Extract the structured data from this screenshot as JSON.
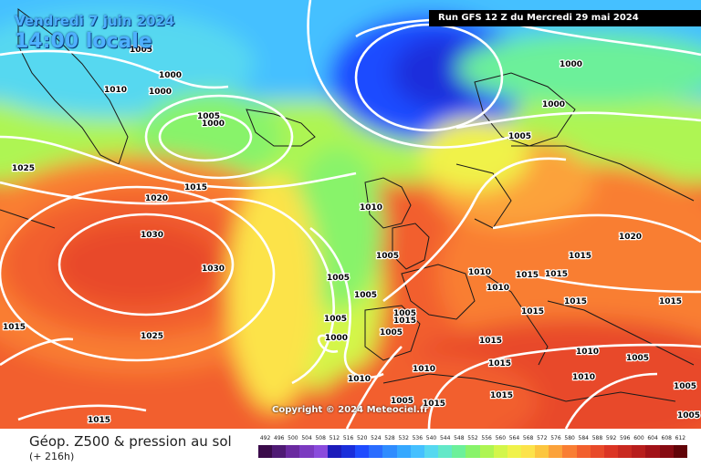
{
  "header": {
    "date": "Vendredi 7 juin 2024",
    "time": "14:00 locale",
    "run": "Run GFS 12 Z du Mercredi 29 mai 2024"
  },
  "copyright": "Copyright © 2024 Meteociel.fr",
  "legend": {
    "title": "Géop. Z500 & pression au sol",
    "subtitle": "(+ 216h)",
    "ticks": [
      "492",
      "496",
      "500",
      "504",
      "508",
      "512",
      "516",
      "520",
      "524",
      "528",
      "532",
      "536",
      "540",
      "544",
      "548",
      "552",
      "556",
      "560",
      "564",
      "568",
      "572",
      "576",
      "580",
      "584",
      "588",
      "592",
      "596",
      "600",
      "604",
      "608",
      "612"
    ],
    "colors": [
      "#3a0b4a",
      "#4f1a74",
      "#6a2aa0",
      "#7b3ac0",
      "#8a4bdc",
      "#1c1bbb",
      "#1a2edb",
      "#1f4cff",
      "#2a6cff",
      "#2f8cff",
      "#36a8ff",
      "#45c0ff",
      "#56d8f0",
      "#63e8c8",
      "#6cf09a",
      "#88f36a",
      "#aef552",
      "#d3f64a",
      "#f0f24a",
      "#fce34a",
      "#fcc63f",
      "#fba23a",
      "#f97e33",
      "#f25f2d",
      "#e84a29",
      "#db3524",
      "#c92920",
      "#b81e1c",
      "#a21218",
      "#870b12",
      "#620408"
    ]
  },
  "pressure_labels": [
    "1005",
    "1000",
    "1010",
    "1000",
    "1005",
    "1000",
    "1025",
    "1020",
    "1015",
    "1030",
    "1030",
    "1015",
    "1025",
    "1015",
    "1010",
    "1005",
    "1005",
    "1005",
    "1000",
    "1005",
    "1010",
    "1010",
    "1005",
    "1005",
    "1000",
    "1000",
    "1005",
    "1010",
    "1010",
    "1015",
    "1015",
    "1015",
    "1015",
    "1020",
    "1015",
    "1015",
    "1015",
    "1010",
    "1010",
    "1005",
    "1015",
    "1005",
    "1015",
    "1005",
    "1005",
    "1015",
    "1015"
  ]
}
